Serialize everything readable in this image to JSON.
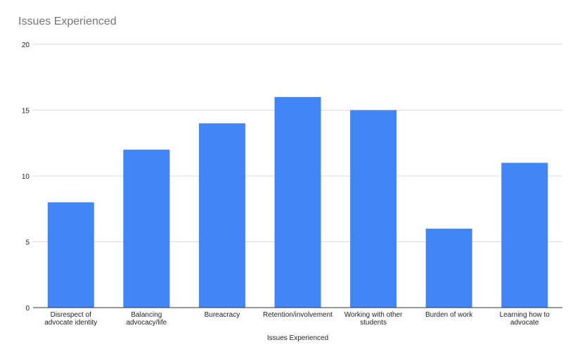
{
  "chart_data": {
    "type": "bar",
    "title": "Issues Experienced",
    "xlabel": "Issues Experienced",
    "ylabel": "",
    "categories": [
      [
        "Disrespect of",
        "advocate identity"
      ],
      [
        "Balancing",
        "advocacy/life"
      ],
      [
        "Bureacracy"
      ],
      [
        "Retention/involvement"
      ],
      [
        "Working with other",
        "students"
      ],
      [
        "Burden of work"
      ],
      [
        "Learning how to",
        "advocate"
      ]
    ],
    "values": [
      8,
      12,
      14,
      16,
      15,
      6,
      11
    ],
    "ylim": [
      0,
      20
    ],
    "yticks": [
      0,
      5,
      10,
      15,
      20
    ],
    "grid": true,
    "legend": "none",
    "bar_color": "#4285f4",
    "grid_color": "#d9d9d9",
    "axis_color": "#333333"
  }
}
